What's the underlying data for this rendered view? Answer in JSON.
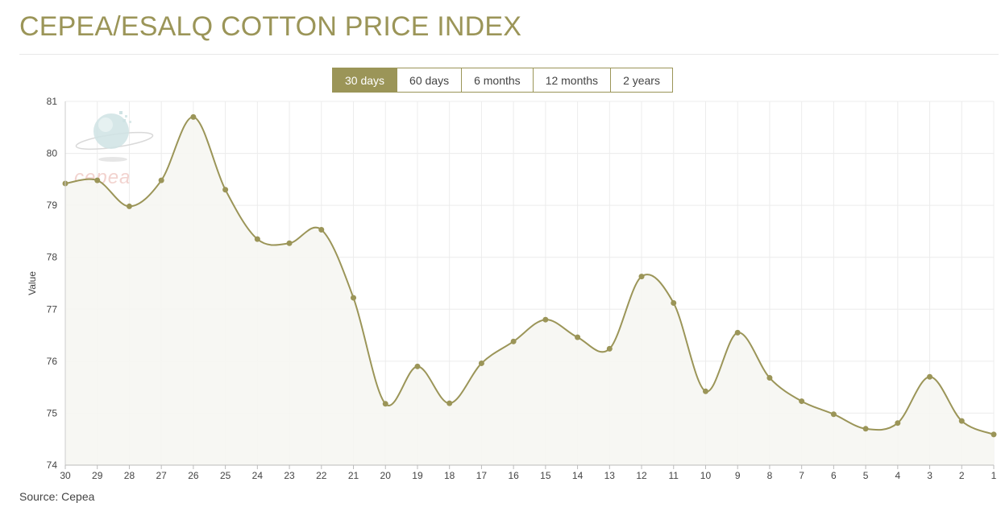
{
  "header": {
    "title": "CEPEA/ESALQ COTTON PRICE INDEX"
  },
  "range_buttons": [
    {
      "label": "30 days",
      "active": true
    },
    {
      "label": "60 days",
      "active": false
    },
    {
      "label": "6 months",
      "active": false
    },
    {
      "label": "12 months",
      "active": false
    },
    {
      "label": "2 years",
      "active": false
    }
  ],
  "footer": {
    "source": "Source: Cepea"
  },
  "watermark": {
    "text": "cepea"
  },
  "colors": {
    "accent": "#9b9558",
    "fill": "#f6f6f2",
    "grid": "#ececec"
  },
  "chart_data": {
    "type": "area",
    "ylabel": "Value",
    "xlabel": "",
    "categories": [
      "30",
      "29",
      "28",
      "27",
      "26",
      "25",
      "24",
      "23",
      "22",
      "21",
      "20",
      "19",
      "18",
      "17",
      "16",
      "15",
      "14",
      "13",
      "12",
      "11",
      "10",
      "9",
      "8",
      "7",
      "6",
      "5",
      "4",
      "3",
      "2",
      "1"
    ],
    "series": [
      {
        "values": [
          79.42,
          79.48,
          78.98,
          79.48,
          80.7,
          79.3,
          78.35,
          78.27,
          78.53,
          77.22,
          75.18,
          75.9,
          75.19,
          75.96,
          76.38,
          76.8,
          76.46,
          76.24,
          77.63,
          77.12,
          75.42,
          76.55,
          75.68,
          75.23,
          74.98,
          74.7,
          74.81,
          75.7,
          74.85,
          74.59
        ]
      }
    ],
    "ylim": [
      74,
      81
    ],
    "yticks": [
      74,
      75,
      76,
      77,
      78,
      79,
      80,
      81
    ],
    "grid": true,
    "smooth": true,
    "markers": true
  }
}
